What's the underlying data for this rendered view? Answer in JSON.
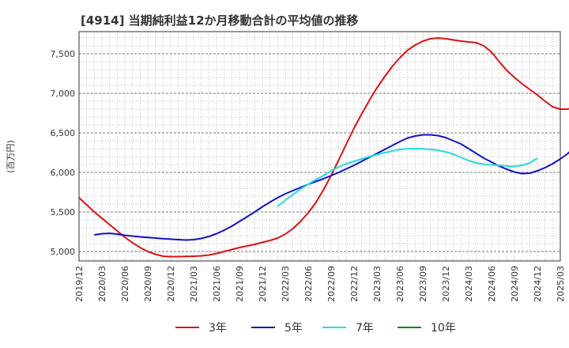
{
  "chart_data": {
    "type": "line",
    "title": "[4914]  当期純利益12か月移動合計の平均値の推移",
    "ylabel": "(百万円)",
    "xlabel": "",
    "ylim": [
      4880,
      7780
    ],
    "yticks": [
      5000,
      5500,
      6000,
      6500,
      7000,
      7500
    ],
    "ytick_labels": [
      "5,000",
      "5,500",
      "6,000",
      "6,500",
      "7,000",
      "7,500"
    ],
    "x_ticks": [
      "2019/12",
      "2020/03",
      "2020/06",
      "2020/09",
      "2020/12",
      "2021/03",
      "2021/06",
      "2021/09",
      "2021/12",
      "2022/03",
      "2022/06",
      "2022/09",
      "2022/12",
      "2023/03",
      "2023/06",
      "2023/09",
      "2023/12",
      "2024/03",
      "2024/06",
      "2024/09",
      "2024/12",
      "2025/03"
    ],
    "grid": true,
    "legend_position": "bottom",
    "series": [
      {
        "name": "3年",
        "color": "#dd1111",
        "start": "2019/12",
        "values": [
          5680,
          5590,
          5500,
          5420,
          5340,
          5260,
          5180,
          5110,
          5050,
          5000,
          4965,
          4940,
          4935,
          4935,
          4937,
          4940,
          4945,
          4955,
          4975,
          5000,
          5025,
          5050,
          5070,
          5090,
          5115,
          5140,
          5170,
          5220,
          5290,
          5380,
          5490,
          5620,
          5780,
          5960,
          6160,
          6360,
          6560,
          6740,
          6910,
          7070,
          7210,
          7340,
          7450,
          7545,
          7610,
          7660,
          7690,
          7700,
          7690,
          7675,
          7660,
          7650,
          7640,
          7600,
          7520,
          7400,
          7290,
          7200,
          7120,
          7050,
          6980,
          6900,
          6830,
          6800,
          6800,
          6840
        ]
      },
      {
        "name": "5年",
        "color": "#1111cc",
        "start": "2020/02",
        "values": [
          5210,
          5225,
          5230,
          5220,
          5205,
          5195,
          5185,
          5178,
          5170,
          5163,
          5156,
          5150,
          5145,
          5150,
          5165,
          5190,
          5225,
          5270,
          5320,
          5380,
          5440,
          5500,
          5565,
          5625,
          5680,
          5730,
          5770,
          5810,
          5850,
          5885,
          5920,
          5960,
          6000,
          6045,
          6090,
          6140,
          6190,
          6240,
          6290,
          6340,
          6390,
          6435,
          6460,
          6475,
          6475,
          6465,
          6440,
          6400,
          6360,
          6300,
          6240,
          6180,
          6130,
          6080,
          6040,
          6005,
          5985,
          5990,
          6020,
          6060,
          6110,
          6170,
          6240,
          6340,
          6480
        ]
      },
      {
        "name": "7年",
        "color": "#22dddd",
        "start": "2022/02",
        "values": [
          5570,
          5650,
          5720,
          5790,
          5850,
          5910,
          5960,
          6020,
          6070,
          6110,
          6140,
          6170,
          6200,
          6225,
          6250,
          6270,
          6290,
          6300,
          6300,
          6300,
          6290,
          6280,
          6260,
          6230,
          6190,
          6150,
          6120,
          6105,
          6095,
          6090,
          6080,
          6075,
          6090,
          6120,
          6180
        ]
      },
      {
        "name": "10年",
        "color": "#118811",
        "start": "2025/03",
        "values": []
      }
    ]
  }
}
